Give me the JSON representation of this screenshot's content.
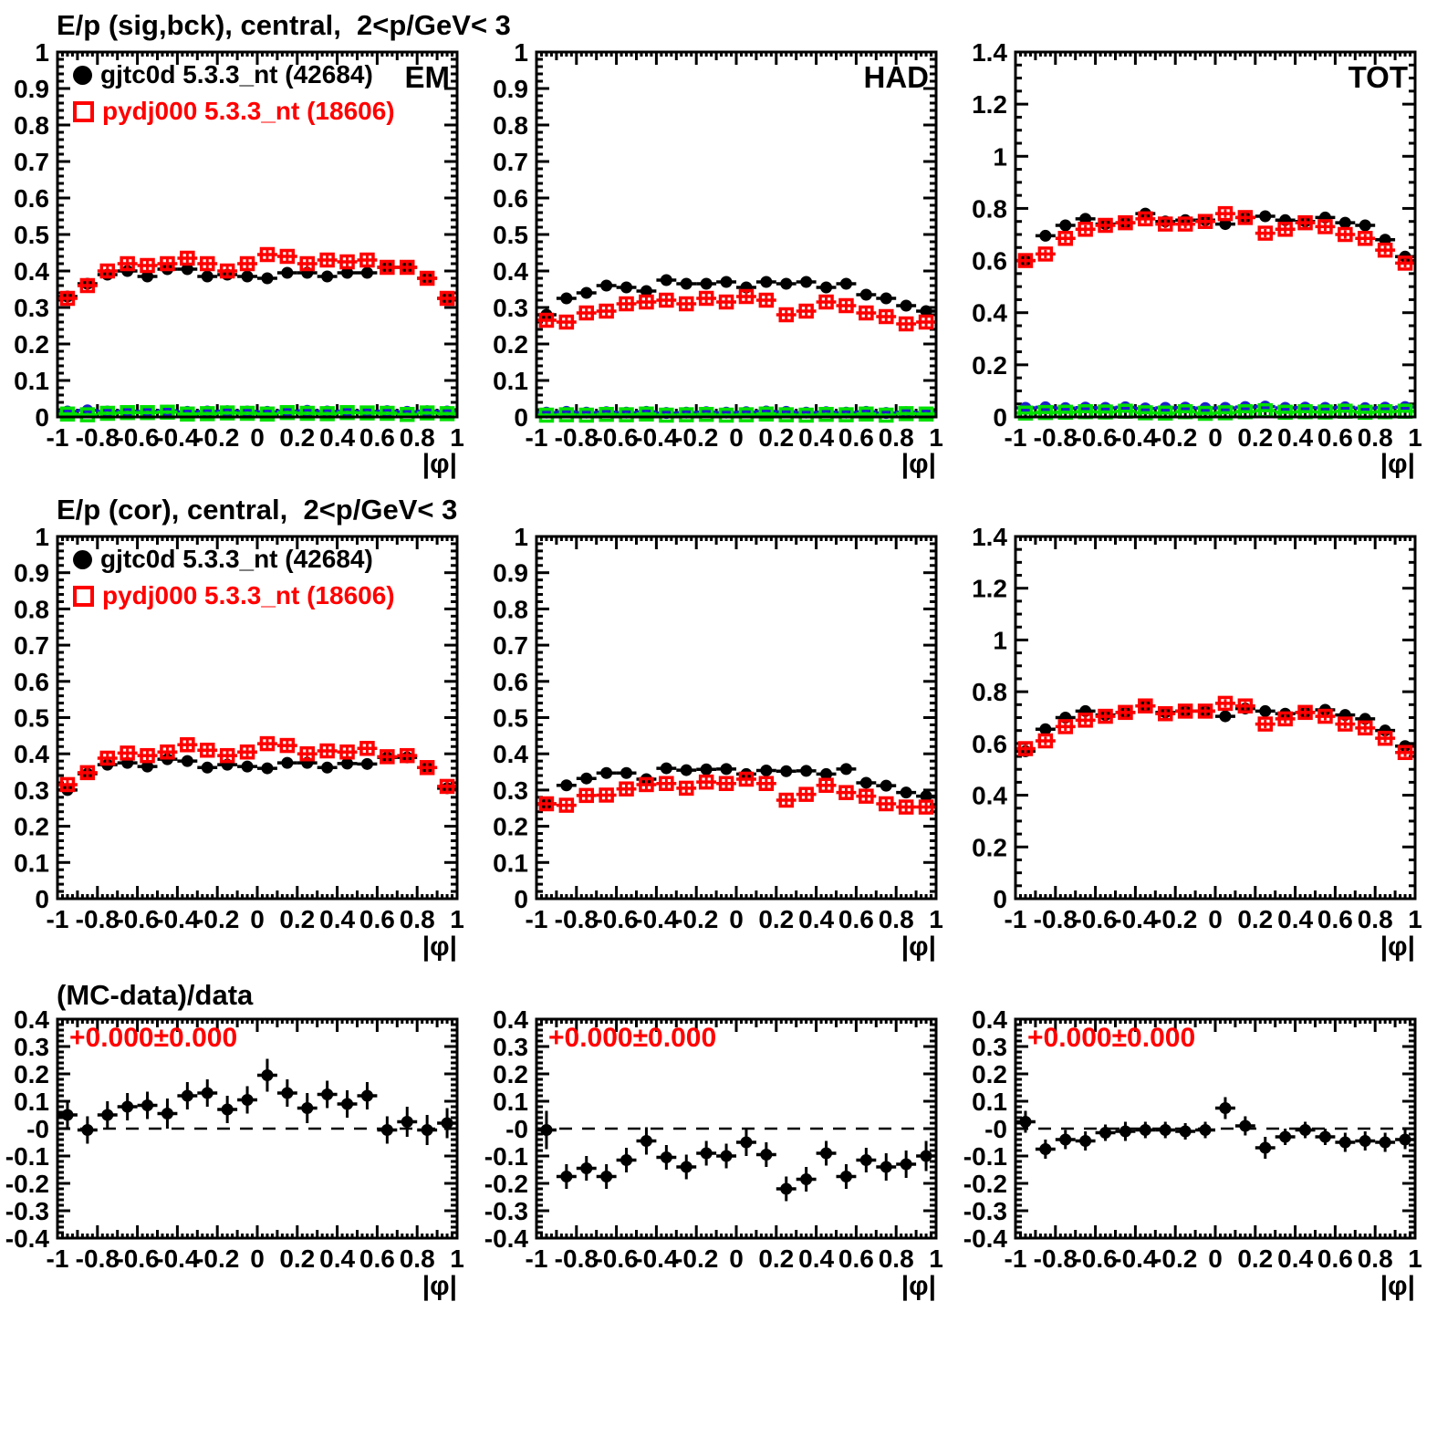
{
  "chart_data": {
    "type": "scatter",
    "xlabel": "|φ|",
    "x_min": -1,
    "x_max": 1,
    "x_tick_labels": [
      "-1",
      "-0.8",
      "-0.6",
      "-0.4",
      "-0.2",
      "0",
      "0.2",
      "0.4",
      "0.6",
      "0.8",
      "1"
    ],
    "x_centers": [
      -0.95,
      -0.85,
      -0.75,
      -0.65,
      -0.55,
      -0.45,
      -0.35,
      -0.25,
      -0.15,
      -0.05,
      0.05,
      0.15,
      0.25,
      0.35,
      0.45,
      0.55,
      0.65,
      0.75,
      0.85,
      0.95
    ],
    "row_titles": [
      "E/p (sig,bck), central,  2<p/GeV< 3",
      "E/p (cor), central,  2<p/GeV< 3",
      "(MC-data)/data"
    ],
    "legend": {
      "entries": [
        {
          "label": "gjtc0d 5.3.3_nt (42684)",
          "color": "#000000",
          "marker": "filled-circle"
        },
        {
          "label": "pydj000 5.3.3_nt (18606)",
          "color": "#ff0000",
          "marker": "open-square"
        }
      ]
    },
    "colors": {
      "data": "#000000",
      "mc": "#ff0000",
      "background_data": "#1c1ccc",
      "background_mc": "#00e000",
      "annotation": "#ff0000"
    },
    "panels": [
      {
        "id": "em-sig-bck",
        "panel_label": "EM",
        "y_min": 0,
        "y_max": 1,
        "y_major": 0.1,
        "y_minor": 0.02,
        "zero_line": false,
        "y_tick_labels": [
          "0",
          "0.1",
          "0.2",
          "0.3",
          "0.4",
          "0.5",
          "0.6",
          "0.7",
          "0.8",
          "0.9",
          "1"
        ],
        "series": [
          {
            "name": "gjtc0d data",
            "color": "#000000",
            "marker": "filled-circle",
            "yerr": 0.012,
            "values": [
              0.33,
              0.365,
              0.39,
              0.4,
              0.385,
              0.405,
              0.405,
              0.385,
              0.39,
              0.385,
              0.38,
              0.395,
              0.395,
              0.385,
              0.395,
              0.395,
              0.41,
              0.41,
              0.38,
              0.325
            ]
          },
          {
            "name": "pydj000 MC",
            "color": "#ff0000",
            "marker": "open-square",
            "yerr": 0.014,
            "values": [
              0.325,
              0.36,
              0.4,
              0.42,
              0.415,
              0.42,
              0.435,
              0.42,
              0.4,
              0.42,
              0.445,
              0.44,
              0.42,
              0.43,
              0.425,
              0.43,
              0.41,
              0.41,
              0.38,
              0.325
            ]
          },
          {
            "name": "background data",
            "color": "#1c1ccc",
            "marker": "filled-circle",
            "yerr": 0.005,
            "values": [
              0.015,
              0.018,
              0.015,
              0.016,
              0.015,
              0.017,
              0.014,
              0.015,
              0.016,
              0.015,
              0.014,
              0.016,
              0.017,
              0.015,
              0.016,
              0.015,
              0.016,
              0.014,
              0.016,
              0.015
            ]
          },
          {
            "name": "background MC",
            "color": "#00e000",
            "marker": "open-square",
            "yerr": 0.005,
            "values": [
              0.008,
              0.006,
              0.01,
              0.012,
              0.012,
              0.013,
              0.008,
              0.009,
              0.011,
              0.01,
              0.008,
              0.012,
              0.01,
              0.009,
              0.012,
              0.011,
              0.01,
              0.007,
              0.011,
              0.009
            ]
          }
        ]
      },
      {
        "id": "had-sig-bck",
        "panel_label": "HAD",
        "y_min": 0,
        "y_max": 1,
        "y_major": 0.1,
        "y_minor": 0.02,
        "zero_line": false,
        "y_tick_labels": [
          "0",
          "0.1",
          "0.2",
          "0.3",
          "0.4",
          "0.5",
          "0.6",
          "0.7",
          "0.8",
          "0.9",
          "1"
        ],
        "series": [
          {
            "name": "gjtc0d data",
            "color": "#000000",
            "marker": "filled-circle",
            "yerr": 0.012,
            "values": [
              0.28,
              0.325,
              0.34,
              0.36,
              0.355,
              0.345,
              0.375,
              0.365,
              0.365,
              0.37,
              0.355,
              0.37,
              0.365,
              0.37,
              0.355,
              0.365,
              0.335,
              0.325,
              0.305,
              0.29
            ]
          },
          {
            "name": "pydj000 MC",
            "color": "#ff0000",
            "marker": "open-square",
            "yerr": 0.014,
            "values": [
              0.265,
              0.26,
              0.285,
              0.29,
              0.31,
              0.315,
              0.32,
              0.31,
              0.325,
              0.315,
              0.33,
              0.32,
              0.28,
              0.29,
              0.315,
              0.305,
              0.285,
              0.275,
              0.255,
              0.26
            ]
          },
          {
            "name": "background data",
            "color": "#1c1ccc",
            "marker": "filled-circle",
            "yerr": 0.005,
            "values": [
              0.012,
              0.014,
              0.012,
              0.013,
              0.012,
              0.014,
              0.011,
              0.012,
              0.013,
              0.012,
              0.013,
              0.015,
              0.014,
              0.012,
              0.013,
              0.012,
              0.014,
              0.011,
              0.013,
              0.012
            ]
          },
          {
            "name": "background MC",
            "color": "#00e000",
            "marker": "open-square",
            "yerr": 0.005,
            "values": [
              0.005,
              0.006,
              0.005,
              0.007,
              0.006,
              0.008,
              0.005,
              0.006,
              0.007,
              0.005,
              0.006,
              0.008,
              0.006,
              0.005,
              0.007,
              0.006,
              0.008,
              0.005,
              0.009,
              0.008
            ]
          }
        ]
      },
      {
        "id": "tot-sig-bck",
        "panel_label": "TOT",
        "y_min": 0,
        "y_max": 1.4,
        "y_major": 0.2,
        "y_minor": 0.05,
        "zero_line": false,
        "y_tick_labels": [
          "0",
          "0.2",
          "0.4",
          "0.6",
          "0.8",
          "1",
          "1.2",
          "1.4"
        ],
        "series": [
          {
            "name": "gjtc0d data",
            "color": "#000000",
            "marker": "filled-circle",
            "yerr": 0.014,
            "values": [
              0.6,
              0.695,
              0.735,
              0.76,
              0.74,
              0.745,
              0.78,
              0.75,
              0.755,
              0.755,
              0.74,
              0.765,
              0.77,
              0.755,
              0.75,
              0.765,
              0.745,
              0.735,
              0.68,
              0.615
            ]
          },
          {
            "name": "pydj000 MC",
            "color": "#ff0000",
            "marker": "open-square",
            "yerr": 0.016,
            "values": [
              0.6,
              0.625,
              0.685,
              0.72,
              0.735,
              0.745,
              0.76,
              0.74,
              0.74,
              0.75,
              0.78,
              0.765,
              0.705,
              0.72,
              0.745,
              0.73,
              0.7,
              0.685,
              0.64,
              0.59
            ]
          },
          {
            "name": "background data",
            "color": "#1c1ccc",
            "marker": "filled-circle",
            "yerr": 0.006,
            "values": [
              0.035,
              0.037,
              0.034,
              0.036,
              0.035,
              0.037,
              0.033,
              0.035,
              0.036,
              0.034,
              0.035,
              0.038,
              0.04,
              0.035,
              0.036,
              0.035,
              0.037,
              0.034,
              0.036,
              0.038
            ]
          },
          {
            "name": "background MC",
            "color": "#00e000",
            "marker": "open-square",
            "yerr": 0.006,
            "values": [
              0.015,
              0.017,
              0.018,
              0.02,
              0.019,
              0.022,
              0.016,
              0.015,
              0.02,
              0.014,
              0.016,
              0.02,
              0.024,
              0.018,
              0.02,
              0.019,
              0.022,
              0.018,
              0.02,
              0.022
            ]
          }
        ]
      },
      {
        "id": "em-cor",
        "panel_label": "",
        "y_min": 0,
        "y_max": 1,
        "y_major": 0.1,
        "y_minor": 0.02,
        "zero_line": false,
        "y_tick_labels": [
          "0",
          "0.1",
          "0.2",
          "0.3",
          "0.4",
          "0.5",
          "0.6",
          "0.7",
          "0.8",
          "0.9",
          "1"
        ],
        "series": [
          {
            "name": "gjtc0d data",
            "color": "#000000",
            "marker": "filled-circle",
            "yerr": 0.012,
            "values": [
              0.3,
              0.345,
              0.37,
              0.375,
              0.365,
              0.385,
              0.38,
              0.362,
              0.37,
              0.365,
              0.36,
              0.375,
              0.375,
              0.362,
              0.373,
              0.372,
              0.39,
              0.39,
              0.362,
              0.305
            ]
          },
          {
            "name": "pydj000 MC",
            "color": "#ff0000",
            "marker": "open-square",
            "yerr": 0.014,
            "values": [
              0.315,
              0.348,
              0.388,
              0.402,
              0.395,
              0.405,
              0.425,
              0.41,
              0.395,
              0.405,
              0.428,
              0.423,
              0.4,
              0.408,
              0.405,
              0.415,
              0.392,
              0.395,
              0.362,
              0.31
            ]
          }
        ]
      },
      {
        "id": "had-cor",
        "panel_label": "",
        "y_min": 0,
        "y_max": 1,
        "y_major": 0.1,
        "y_minor": 0.02,
        "zero_line": false,
        "y_tick_labels": [
          "0",
          "0.1",
          "0.2",
          "0.3",
          "0.4",
          "0.5",
          "0.6",
          "0.7",
          "0.8",
          "0.9",
          "1"
        ],
        "series": [
          {
            "name": "gjtc0d data",
            "color": "#000000",
            "marker": "filled-circle",
            "yerr": 0.012,
            "values": [
              0.262,
              0.313,
              0.332,
              0.347,
              0.347,
              0.33,
              0.36,
              0.355,
              0.357,
              0.358,
              0.344,
              0.354,
              0.352,
              0.353,
              0.344,
              0.358,
              0.32,
              0.312,
              0.293,
              0.283
            ]
          },
          {
            "name": "pydj000 MC",
            "color": "#ff0000",
            "marker": "open-square",
            "yerr": 0.014,
            "values": [
              0.262,
              0.258,
              0.285,
              0.286,
              0.303,
              0.315,
              0.318,
              0.305,
              0.322,
              0.318,
              0.33,
              0.318,
              0.272,
              0.288,
              0.313,
              0.293,
              0.283,
              0.262,
              0.253,
              0.253
            ]
          }
        ]
      },
      {
        "id": "tot-cor",
        "panel_label": "",
        "y_min": 0,
        "y_max": 1.4,
        "y_major": 0.2,
        "y_minor": 0.05,
        "zero_line": false,
        "y_tick_labels": [
          "0",
          "0.2",
          "0.4",
          "0.6",
          "0.8",
          "1",
          "1.2",
          "1.4"
        ],
        "series": [
          {
            "name": "gjtc0d data",
            "color": "#000000",
            "marker": "filled-circle",
            "yerr": 0.014,
            "values": [
              0.57,
              0.655,
              0.7,
              0.725,
              0.71,
              0.72,
              0.745,
              0.72,
              0.725,
              0.725,
              0.705,
              0.735,
              0.725,
              0.715,
              0.72,
              0.73,
              0.71,
              0.695,
              0.65,
              0.59
            ]
          },
          {
            "name": "pydj000 MC",
            "color": "#ff0000",
            "marker": "open-square",
            "yerr": 0.016,
            "values": [
              0.58,
              0.61,
              0.665,
              0.69,
              0.705,
              0.72,
              0.745,
              0.715,
              0.725,
              0.725,
              0.755,
              0.745,
              0.675,
              0.695,
              0.72,
              0.705,
              0.675,
              0.66,
              0.62,
              0.565
            ]
          }
        ]
      },
      {
        "id": "ratio-em",
        "panel_label": "",
        "annotation": "+0.000±0.000",
        "y_min": -0.4,
        "y_max": 0.4,
        "y_major": 0.1,
        "y_minor": 0.02,
        "zero_line": true,
        "y_tick_labels": [
          "-0.4",
          "-0.3",
          "-0.2",
          "-0.1",
          "-0",
          "0.1",
          "0.2",
          "0.3",
          "0.4"
        ],
        "series": [
          {
            "name": "(MC-data)/data",
            "color": "#000000",
            "marker": "filled-circle",
            "values": [
              0.05,
              -0.005,
              0.05,
              0.08,
              0.085,
              0.055,
              0.12,
              0.13,
              0.07,
              0.105,
              0.195,
              0.13,
              0.075,
              0.125,
              0.09,
              0.12,
              -0.005,
              0.025,
              -0.005,
              0.02
            ],
            "yerr": [
              0.055,
              0.05,
              0.05,
              0.05,
              0.05,
              0.055,
              0.05,
              0.05,
              0.05,
              0.05,
              0.06,
              0.05,
              0.055,
              0.05,
              0.05,
              0.05,
              0.05,
              0.055,
              0.055,
              0.055
            ]
          }
        ]
      },
      {
        "id": "ratio-had",
        "panel_label": "",
        "annotation": "+0.000±0.000",
        "y_min": -0.4,
        "y_max": 0.4,
        "y_major": 0.1,
        "y_minor": 0.02,
        "zero_line": true,
        "y_tick_labels": [
          "-0.4",
          "-0.3",
          "-0.2",
          "-0.1",
          "-0",
          "0.1",
          "0.2",
          "0.3",
          "0.4"
        ],
        "series": [
          {
            "name": "(MC-data)/data",
            "color": "#000000",
            "marker": "filled-circle",
            "values": [
              -0.005,
              -0.175,
              -0.145,
              -0.175,
              -0.115,
              -0.045,
              -0.105,
              -0.14,
              -0.09,
              -0.1,
              -0.05,
              -0.095,
              -0.22,
              -0.185,
              -0.09,
              -0.175,
              -0.115,
              -0.14,
              -0.13,
              -0.1
            ],
            "yerr": [
              0.07,
              0.045,
              0.045,
              0.045,
              0.045,
              0.05,
              0.045,
              0.045,
              0.045,
              0.045,
              0.05,
              0.045,
              0.045,
              0.045,
              0.045,
              0.045,
              0.045,
              0.05,
              0.05,
              0.055
            ]
          }
        ]
      },
      {
        "id": "ratio-tot",
        "panel_label": "",
        "annotation": "+0.000±0.000",
        "y_min": -0.4,
        "y_max": 0.4,
        "y_major": 0.1,
        "y_minor": 0.02,
        "zero_line": true,
        "y_tick_labels": [
          "-0.4",
          "-0.3",
          "-0.2",
          "-0.1",
          "-0",
          "0.1",
          "0.2",
          "0.3",
          "0.4"
        ],
        "series": [
          {
            "name": "(MC-data)/data",
            "color": "#000000",
            "marker": "filled-circle",
            "values": [
              0.025,
              -0.075,
              -0.04,
              -0.045,
              -0.015,
              -0.01,
              -0.005,
              -0.005,
              -0.01,
              -0.005,
              0.075,
              0.01,
              -0.07,
              -0.03,
              -0.005,
              -0.03,
              -0.05,
              -0.045,
              -0.05,
              -0.04
            ],
            "yerr": [
              0.04,
              0.035,
              0.035,
              0.035,
              0.03,
              0.035,
              0.03,
              0.03,
              0.03,
              0.03,
              0.04,
              0.035,
              0.04,
              0.03,
              0.03,
              0.03,
              0.035,
              0.035,
              0.035,
              0.035
            ]
          }
        ]
      }
    ]
  }
}
